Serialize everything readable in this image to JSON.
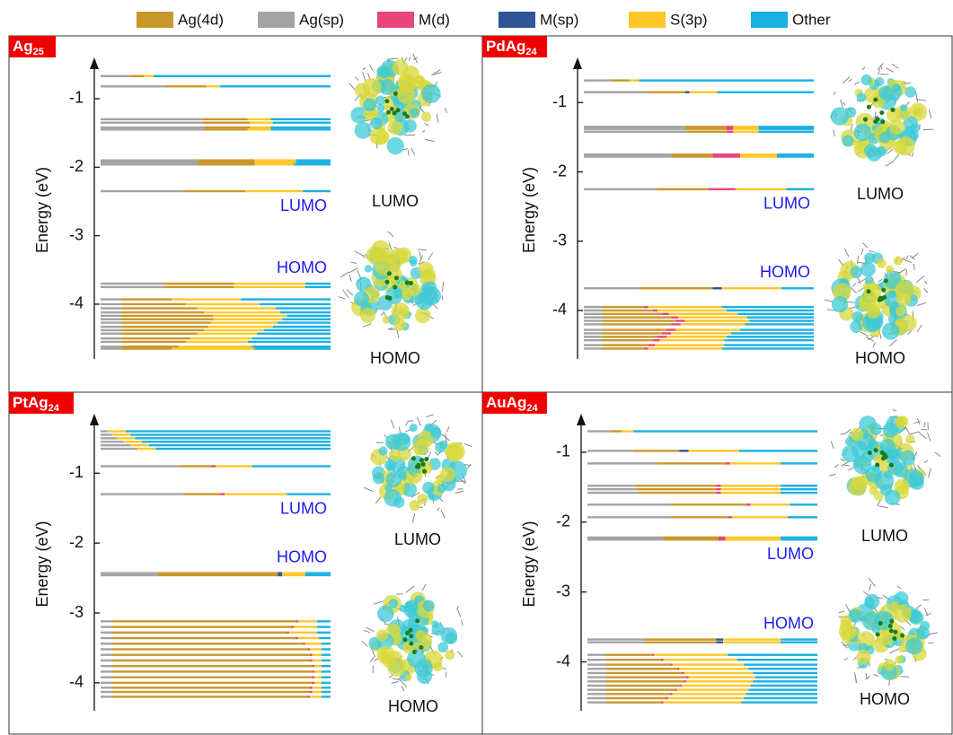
{
  "legend": {
    "series": [
      {
        "name": "Ag(4d)",
        "color": "#c9982a"
      },
      {
        "name": "Ag(sp)",
        "color": "#a3a3a3"
      },
      {
        "name": "M(d)",
        "color": "#e8457a"
      },
      {
        "name": "M(sp)",
        "color": "#2f5597"
      },
      {
        "name": "S(3p)",
        "color": "#ffc82a"
      },
      {
        "name": "Other",
        "color": "#1ab0e2"
      }
    ]
  },
  "chart_data": [
    {
      "type": "levels",
      "label": {
        "base": "Ag",
        "sub": "25"
      },
      "ylabel": "Energy (eV)",
      "ylim": [
        -4.8,
        -0.45
      ],
      "yticks": [
        -1,
        -2,
        -3,
        -4
      ],
      "lumo_tag": "LUMO",
      "homo_tag": "HOMO",
      "lumo_caption": "LUMO",
      "homo_caption": "HOMO",
      "levels": [
        {
          "energy": -0.67,
          "values": [
            6,
            13,
            0,
            0,
            4,
            77
          ]
        },
        {
          "energy": -0.82,
          "values": [
            18,
            28,
            0,
            0,
            6,
            48
          ]
        },
        {
          "energy": -1.3,
          "values": [
            20,
            44,
            0,
            0,
            10,
            26
          ]
        },
        {
          "energy": -1.35,
          "values": [
            21,
            44,
            0,
            0,
            10,
            25
          ]
        },
        {
          "energy": -1.42,
          "values": [
            20,
            45,
            0,
            0,
            9,
            26
          ]
        },
        {
          "energy": -1.45,
          "values": [
            19,
            45,
            0,
            0,
            10,
            26
          ]
        },
        {
          "energy": -1.9,
          "values": [
            25,
            42,
            0,
            0,
            18,
            15
          ]
        },
        {
          "energy": -1.93,
          "values": [
            24,
            43,
            0,
            0,
            18,
            15
          ]
        },
        {
          "energy": -1.96,
          "values": [
            25,
            42,
            0,
            0,
            17,
            16
          ]
        },
        {
          "energy": -2.35,
          "values": [
            27,
            36,
            0,
            0,
            25,
            12
          ]
        },
        {
          "energy": -3.7,
          "values": [
            31,
            27,
            0,
            0,
            31,
            11
          ]
        },
        {
          "energy": -3.75,
          "values": [
            30,
            28,
            0,
            0,
            31,
            11
          ]
        },
        {
          "energy": -3.93,
          "values": [
            22,
            9,
            0,
            0,
            30,
            39
          ]
        },
        {
          "energy": -4.0,
          "values": [
            28,
            9,
            0,
            0,
            32,
            31
          ]
        },
        {
          "energy": -4.06,
          "values": [
            33,
            9,
            0,
            0,
            34,
            24
          ]
        },
        {
          "energy": -4.12,
          "values": [
            36,
            9,
            0,
            0,
            33,
            22
          ]
        },
        {
          "energy": -4.17,
          "values": [
            40,
            9,
            0,
            0,
            32,
            19
          ]
        },
        {
          "energy": -4.22,
          "values": [
            40,
            9,
            0,
            0,
            30,
            21
          ]
        },
        {
          "energy": -4.27,
          "values": [
            39,
            9,
            0,
            0,
            29,
            23
          ]
        },
        {
          "energy": -4.33,
          "values": [
            38,
            9,
            0,
            0,
            28,
            25
          ]
        },
        {
          "energy": -4.38,
          "values": [
            36,
            9,
            0,
            0,
            26,
            29
          ]
        },
        {
          "energy": -4.43,
          "values": [
            33,
            9,
            0,
            0,
            26,
            32
          ]
        },
        {
          "energy": -4.5,
          "values": [
            30,
            9,
            0,
            0,
            27,
            34
          ]
        },
        {
          "energy": -4.55,
          "values": [
            28,
            9,
            0,
            0,
            27,
            36
          ]
        },
        {
          "energy": -4.62,
          "values": [
            25,
            9,
            0,
            0,
            32,
            34
          ]
        },
        {
          "energy": -4.65,
          "values": [
            22,
            9,
            0,
            0,
            36,
            33
          ]
        }
      ]
    },
    {
      "type": "levels",
      "label": {
        "base": "PdAg",
        "sub": "24"
      },
      "ylabel": "Energy (eV)",
      "ylim": [
        -4.7,
        -0.4
      ],
      "yticks": [
        -1,
        -2,
        -3,
        -4
      ],
      "lumo_tag": "LUMO",
      "homo_tag": "HOMO",
      "lumo_caption": "LUMO",
      "homo_caption": "HOMO",
      "levels": [
        {
          "energy": -0.68,
          "values": [
            8,
            12,
            0,
            0,
            4,
            76
          ]
        },
        {
          "energy": -0.85,
          "values": [
            16,
            28,
            0,
            2,
            12,
            42
          ]
        },
        {
          "energy": -1.35,
          "values": [
            18,
            44,
            3,
            0,
            11,
            24
          ]
        },
        {
          "energy": -1.38,
          "values": [
            18,
            44,
            3,
            0,
            11,
            24
          ]
        },
        {
          "energy": -1.42,
          "values": [
            17,
            45,
            3,
            0,
            11,
            24
          ]
        },
        {
          "energy": -1.75,
          "values": [
            18,
            38,
            12,
            0,
            16,
            16
          ]
        },
        {
          "energy": -1.78,
          "values": [
            18,
            38,
            12,
            0,
            16,
            16
          ]
        },
        {
          "energy": -2.25,
          "values": [
            22,
            32,
            12,
            0,
            22,
            12
          ]
        },
        {
          "energy": -3.68,
          "values": [
            32,
            24,
            0,
            4,
            26,
            14
          ]
        },
        {
          "energy": -3.95,
          "values": [
            18,
            8,
            2,
            0,
            32,
            40
          ]
        },
        {
          "energy": -4.0,
          "values": [
            22,
            8,
            2,
            0,
            30,
            38
          ]
        },
        {
          "energy": -4.05,
          "values": [
            26,
            8,
            3,
            0,
            30,
            33
          ]
        },
        {
          "energy": -4.1,
          "values": [
            30,
            8,
            3,
            0,
            30,
            29
          ]
        },
        {
          "energy": -4.15,
          "values": [
            32,
            8,
            4,
            0,
            28,
            28
          ]
        },
        {
          "energy": -4.2,
          "values": [
            30,
            8,
            4,
            0,
            28,
            30
          ]
        },
        {
          "energy": -4.28,
          "values": [
            28,
            8,
            4,
            0,
            28,
            32
          ]
        },
        {
          "energy": -4.33,
          "values": [
            26,
            8,
            4,
            0,
            26,
            36
          ]
        },
        {
          "energy": -4.38,
          "values": [
            24,
            8,
            4,
            0,
            26,
            38
          ]
        },
        {
          "energy": -4.43,
          "values": [
            22,
            8,
            3,
            0,
            28,
            39
          ]
        },
        {
          "energy": -4.5,
          "values": [
            20,
            8,
            3,
            0,
            30,
            39
          ]
        },
        {
          "energy": -4.55,
          "values": [
            18,
            8,
            2,
            0,
            32,
            40
          ]
        }
      ]
    },
    {
      "type": "levels",
      "label": {
        "base": "PtAg",
        "sub": "24"
      },
      "ylabel": "Energy (eV)",
      "ylim": [
        -4.4,
        -0.2
      ],
      "yticks": [
        -1,
        -2,
        -3,
        -4
      ],
      "lumo_tag": "LUMO",
      "homo_tag": "HOMO",
      "lumo_caption": "LUMO",
      "homo_caption": "HOMO",
      "levels": [
        {
          "energy": -0.4,
          "values": [
            0,
            3,
            0,
            0,
            8,
            89
          ]
        },
        {
          "energy": -0.45,
          "values": [
            0,
            5,
            0,
            0,
            8,
            87
          ]
        },
        {
          "energy": -0.5,
          "values": [
            0,
            7,
            0,
            0,
            8,
            85
          ]
        },
        {
          "energy": -0.55,
          "values": [
            0,
            10,
            0,
            0,
            8,
            82
          ]
        },
        {
          "energy": -0.6,
          "values": [
            0,
            13,
            0,
            0,
            8,
            79
          ]
        },
        {
          "energy": -0.65,
          "values": [
            0,
            16,
            0,
            0,
            8,
            76
          ]
        },
        {
          "energy": -0.9,
          "values": [
            14,
            34,
            2,
            0,
            16,
            34
          ]
        },
        {
          "energy": -1.3,
          "values": [
            16,
            36,
            2,
            0,
            27,
            19
          ]
        },
        {
          "energy": -2.43,
          "values": [
            52,
            25,
            0,
            2,
            10,
            11
          ]
        },
        {
          "energy": -2.46,
          "values": [
            52,
            25,
            0,
            2,
            10,
            11
          ]
        },
        {
          "energy": -3.12,
          "values": [
            80,
            5,
            1,
            0,
            8,
            6
          ]
        },
        {
          "energy": -3.2,
          "values": [
            78,
            5,
            1,
            0,
            10,
            6
          ]
        },
        {
          "energy": -3.28,
          "values": [
            76,
            5,
            1,
            0,
            12,
            6
          ]
        },
        {
          "energy": -3.36,
          "values": [
            80,
            5,
            1,
            0,
            9,
            5
          ]
        },
        {
          "energy": -3.44,
          "values": [
            83,
            5,
            1,
            0,
            7,
            4
          ]
        },
        {
          "energy": -3.52,
          "values": [
            85,
            5,
            1,
            0,
            5,
            4
          ]
        },
        {
          "energy": -3.6,
          "values": [
            86,
            5,
            1,
            0,
            4,
            4
          ]
        },
        {
          "energy": -3.68,
          "values": [
            86,
            5,
            1,
            0,
            4,
            4
          ]
        },
        {
          "energy": -3.76,
          "values": [
            87,
            5,
            1,
            0,
            3,
            4
          ]
        },
        {
          "energy": -3.84,
          "values": [
            87,
            5,
            1,
            0,
            3,
            4
          ]
        },
        {
          "energy": -3.92,
          "values": [
            87,
            5,
            1,
            0,
            3,
            4
          ]
        },
        {
          "energy": -4.0,
          "values": [
            87,
            5,
            1,
            0,
            3,
            4
          ]
        },
        {
          "energy": -4.07,
          "values": [
            86,
            5,
            1,
            0,
            4,
            4
          ]
        },
        {
          "energy": -4.13,
          "values": [
            86,
            5,
            1,
            0,
            4,
            4
          ]
        },
        {
          "energy": -4.2,
          "values": [
            85,
            5,
            1,
            0,
            5,
            4
          ]
        }
      ]
    },
    {
      "type": "levels",
      "label": {
        "base": "AuAg",
        "sub": "24"
      },
      "ylabel": "Energy (eV)",
      "ylim": [
        -4.7,
        -0.5
      ],
      "yticks": [
        -1,
        -2,
        -3,
        -4
      ],
      "lumo_tag": "LUMO",
      "homo_tag": "HOMO",
      "lumo_caption": "LUMO",
      "homo_caption": "HOMO",
      "levels": [
        {
          "energy": -0.7,
          "values": [
            5,
            10,
            0,
            0,
            5,
            80
          ]
        },
        {
          "energy": -0.98,
          "values": [
            20,
            20,
            0,
            4,
            22,
            34
          ]
        },
        {
          "energy": -1.16,
          "values": [
            30,
            30,
            2,
            0,
            22,
            16
          ]
        },
        {
          "energy": -1.48,
          "values": [
            35,
            21,
            2,
            0,
            26,
            16
          ]
        },
        {
          "energy": -1.53,
          "values": [
            35,
            21,
            2,
            0,
            26,
            16
          ]
        },
        {
          "energy": -1.58,
          "values": [
            34,
            22,
            2,
            0,
            26,
            16
          ]
        },
        {
          "energy": -1.75,
          "values": [
            33,
            36,
            2,
            0,
            17,
            12
          ]
        },
        {
          "energy": -1.93,
          "values": [
            25,
            36,
            2,
            0,
            24,
            13
          ]
        },
        {
          "energy": -2.22,
          "values": [
            24,
            33,
            3,
            0,
            24,
            16
          ]
        },
        {
          "energy": -2.25,
          "values": [
            24,
            33,
            3,
            0,
            24,
            16
          ]
        },
        {
          "energy": -3.68,
          "values": [
            31,
            25,
            0,
            3,
            25,
            16
          ]
        },
        {
          "energy": -3.72,
          "values": [
            31,
            25,
            0,
            3,
            25,
            16
          ]
        },
        {
          "energy": -3.9,
          "values": [
            20,
            8,
            1,
            0,
            32,
            39
          ]
        },
        {
          "energy": -3.97,
          "values": [
            24,
            8,
            1,
            0,
            32,
            35
          ]
        },
        {
          "energy": -4.04,
          "values": [
            28,
            8,
            1,
            0,
            31,
            32
          ]
        },
        {
          "energy": -4.1,
          "values": [
            31,
            8,
            1,
            0,
            30,
            30
          ]
        },
        {
          "energy": -4.16,
          "values": [
            33,
            8,
            1,
            0,
            30,
            28
          ]
        },
        {
          "energy": -4.22,
          "values": [
            35,
            8,
            1,
            0,
            29,
            27
          ]
        },
        {
          "energy": -4.28,
          "values": [
            34,
            8,
            1,
            0,
            29,
            28
          ]
        },
        {
          "energy": -4.34,
          "values": [
            32,
            8,
            1,
            0,
            30,
            29
          ]
        },
        {
          "energy": -4.4,
          "values": [
            30,
            8,
            1,
            0,
            31,
            30
          ]
        },
        {
          "energy": -4.46,
          "values": [
            28,
            8,
            1,
            0,
            32,
            31
          ]
        },
        {
          "energy": -4.52,
          "values": [
            26,
            8,
            1,
            0,
            33,
            32
          ]
        },
        {
          "energy": -4.58,
          "values": [
            24,
            8,
            1,
            0,
            34,
            33
          ]
        }
      ]
    }
  ]
}
